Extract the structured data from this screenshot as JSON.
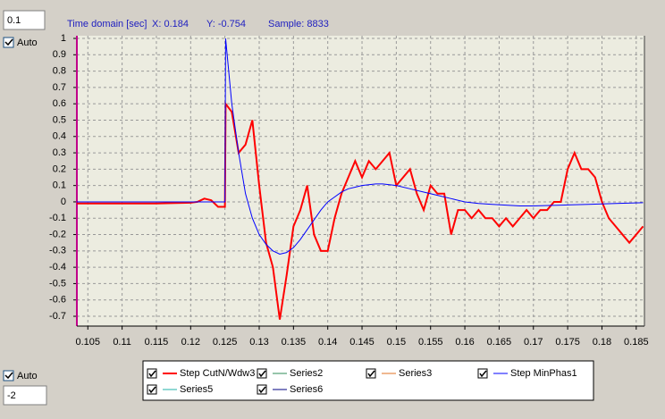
{
  "ui": {
    "top_input": "0.1",
    "top_auto": "Auto",
    "bottom_auto": "Auto",
    "bottom_input": "-2",
    "cursor": [
      "X: 0.184",
      "Y: -0.754",
      "Sample: 8833"
    ]
  },
  "chart_data": {
    "type": "line",
    "xlabel": "Time domain [sec]",
    "xlim": [
      0.1034,
      0.1862
    ],
    "ylim": [
      -0.76,
      1
    ],
    "xticks": [
      0.105,
      0.11,
      0.115,
      0.12,
      0.125,
      0.13,
      0.135,
      0.14,
      0.145,
      0.15,
      0.155,
      0.16,
      0.165,
      0.17,
      0.175,
      0.18,
      0.185
    ],
    "yticks": [
      1,
      0.9,
      0.8,
      0.7,
      0.6,
      0.5,
      0.4,
      0.3,
      0.2,
      0.1,
      0,
      -0.1,
      -0.2,
      -0.3,
      -0.4,
      -0.5,
      -0.6,
      -0.7
    ],
    "grid": true,
    "series": [
      {
        "name": "Step CutN/Wdw3",
        "color": "#ff0000",
        "x": [
          0.1034,
          0.115,
          0.12,
          0.121,
          0.122,
          0.123,
          0.124,
          0.125,
          0.1251,
          0.126,
          0.127,
          0.128,
          0.129,
          0.13,
          0.131,
          0.132,
          0.133,
          0.134,
          0.135,
          0.136,
          0.137,
          0.138,
          0.139,
          0.14,
          0.141,
          0.142,
          0.143,
          0.144,
          0.145,
          0.146,
          0.147,
          0.148,
          0.149,
          0.15,
          0.151,
          0.152,
          0.153,
          0.154,
          0.155,
          0.156,
          0.157,
          0.158,
          0.159,
          0.16,
          0.161,
          0.162,
          0.163,
          0.164,
          0.165,
          0.166,
          0.167,
          0.168,
          0.169,
          0.17,
          0.171,
          0.172,
          0.173,
          0.174,
          0.175,
          0.176,
          0.177,
          0.178,
          0.179,
          0.18,
          0.181,
          0.182,
          0.183,
          0.184,
          0.185,
          0.186
        ],
        "values": [
          -0.01,
          -0.01,
          -0.005,
          0.0,
          0.02,
          0.01,
          -0.03,
          -0.03,
          0.6,
          0.55,
          0.3,
          0.35,
          0.5,
          0.1,
          -0.25,
          -0.4,
          -0.72,
          -0.45,
          -0.15,
          -0.05,
          0.1,
          -0.2,
          -0.3,
          -0.3,
          -0.1,
          0.05,
          0.15,
          0.25,
          0.15,
          0.25,
          0.2,
          0.25,
          0.3,
          0.1,
          0.15,
          0.2,
          0.05,
          -0.05,
          0.1,
          0.05,
          0.05,
          -0.2,
          -0.05,
          -0.05,
          -0.1,
          -0.05,
          -0.1,
          -0.1,
          -0.15,
          -0.1,
          -0.15,
          -0.1,
          -0.05,
          -0.1,
          -0.05,
          -0.05,
          0.0,
          0.0,
          0.2,
          0.3,
          0.2,
          0.2,
          0.15,
          0.0,
          -0.1,
          -0.15,
          -0.2,
          -0.25,
          -0.2,
          -0.15
        ]
      },
      {
        "name": "Series2",
        "color": "#2e8b57"
      },
      {
        "name": "Series3",
        "color": "#e07020"
      },
      {
        "name": "Step MinPhas1",
        "color": "#0000ff",
        "x": [
          0.1034,
          0.125,
          0.1251,
          0.126,
          0.127,
          0.128,
          0.129,
          0.13,
          0.131,
          0.132,
          0.133,
          0.134,
          0.135,
          0.136,
          0.137,
          0.138,
          0.139,
          0.14,
          0.141,
          0.142,
          0.143,
          0.144,
          0.145,
          0.146,
          0.147,
          0.148,
          0.149,
          0.15,
          0.152,
          0.154,
          0.156,
          0.158,
          0.16,
          0.162,
          0.164,
          0.166,
          0.168,
          0.17,
          0.174,
          0.178,
          0.182,
          0.186
        ],
        "values": [
          0,
          0,
          1.0,
          0.6,
          0.3,
          0.05,
          -0.1,
          -0.2,
          -0.26,
          -0.3,
          -0.32,
          -0.31,
          -0.28,
          -0.23,
          -0.17,
          -0.11,
          -0.05,
          0.0,
          0.03,
          0.06,
          0.08,
          0.09,
          0.1,
          0.105,
          0.11,
          0.11,
          0.105,
          0.1,
          0.08,
          0.06,
          0.04,
          0.02,
          0.0,
          -0.01,
          -0.015,
          -0.02,
          -0.025,
          -0.025,
          -0.02,
          -0.015,
          -0.01,
          -0.005
        ]
      },
      {
        "name": "Series5",
        "color": "#20b2aa"
      },
      {
        "name": "Series6",
        "color": "#000080"
      }
    ]
  }
}
